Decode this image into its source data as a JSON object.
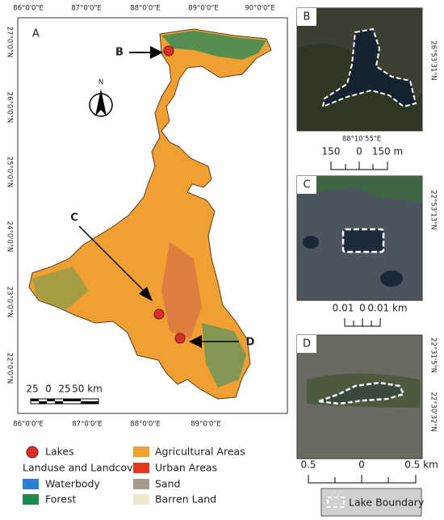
{
  "main_map": {
    "label": "A",
    "top_lon_labels": [
      "86°0'0\"E",
      "87°0'0\"E",
      "88°0'0\"E",
      "89°0'0\"E",
      "90°0'0\"E"
    ],
    "bottom_lon_labels": [
      "86°0'0\"E",
      "87°0'0\"E",
      "88°0'0\"E",
      "89°0'0\"E"
    ],
    "lat_labels": [
      "27°0'0\"N",
      "26°0'0\"N",
      "25°0'0\"N",
      "24°0'0\"N",
      "23°0'0\"N",
      "22°0'0\"N"
    ],
    "north": "N",
    "pointers": [
      "B",
      "C",
      "D"
    ],
    "scale_labels": [
      "25",
      "0",
      "25",
      "50 km"
    ]
  },
  "insets": [
    {
      "label": "B",
      "lat_labels": [
        "26°53'31\"N"
      ],
      "lon_labels": [
        "88°10'55\"E"
      ],
      "scale_labels": [
        "150",
        "0",
        "150 m"
      ]
    },
    {
      "label": "C",
      "lat_labels": [
        "22°53'13\"N"
      ],
      "scale_labels": [
        "0.01",
        "0",
        "0.01 km"
      ]
    },
    {
      "label": "D",
      "lat_labels": [
        "22°31'5\"N",
        "22°30'32\"N"
      ],
      "scale_labels": [
        "0.5",
        "0",
        "0.5 km"
      ]
    }
  ],
  "legend": {
    "lakes": "Lakes",
    "heading": "Landuse and Landcover",
    "items": [
      "Waterbody",
      "Forest",
      "Agricultural Areas",
      "Urban Areas",
      "Sand",
      "Barren Land"
    ],
    "lake_boundary": "Lake Boundary"
  }
}
